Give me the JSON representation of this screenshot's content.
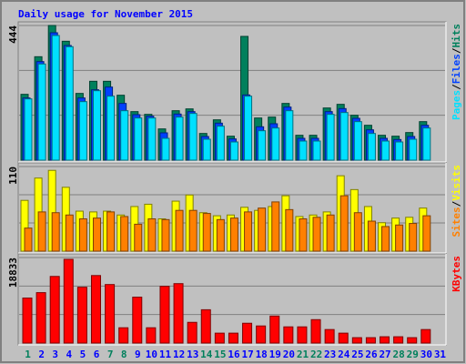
{
  "chart_data": {
    "type": "bar",
    "title": "Daily usage for November 2015",
    "title_color": "#0000ff",
    "categories": [
      "1",
      "2",
      "3",
      "4",
      "5",
      "6",
      "7",
      "8",
      "9",
      "10",
      "11",
      "12",
      "13",
      "14",
      "15",
      "16",
      "17",
      "18",
      "19",
      "20",
      "21",
      "22",
      "23",
      "24",
      "25",
      "26",
      "27",
      "28",
      "29",
      "30",
      "31"
    ],
    "category_colors": [
      "#00805c",
      "#0000ff",
      "#0000ff",
      "#0000ff",
      "#0000ff",
      "#0000ff",
      "#00805c",
      "#00805c",
      "#0000ff",
      "#0000ff",
      "#0000ff",
      "#0000ff",
      "#0000ff",
      "#00805c",
      "#00805c",
      "#0000ff",
      "#0000ff",
      "#0000ff",
      "#0000ff",
      "#0000ff",
      "#00805c",
      "#00805c",
      "#0000ff",
      "#0000ff",
      "#0000ff",
      "#0000ff",
      "#0000ff",
      "#00805c",
      "#00805c",
      "#0000ff",
      "#0000ff"
    ],
    "legend_separator": "/",
    "panels": [
      {
        "ylim": [
          0,
          444
        ],
        "yticks": [
          444
        ],
        "series": [
          {
            "name": "Hits",
            "color": "#00805c",
            "values": [
              217,
              341,
              444,
              392,
              220,
              260,
              260,
              214,
              160,
              151,
              103,
              163,
              169,
              88,
              133,
              79,
              408,
              139,
              142,
              187,
              82,
              82,
              172,
              184,
              148,
              115,
              82,
              79,
              91,
              127,
              0
            ]
          },
          {
            "name": "Files",
            "color": "#0040ff",
            "values": [
              205,
              325,
              420,
              378,
              205,
              232,
              241,
              187,
              150,
              145,
              90,
              152,
              160,
              78,
              122,
              70,
              215,
              110,
              120,
              175,
              72,
              72,
              160,
              170,
              138,
              100,
              72,
              68,
              78,
              115,
              0
            ]
          },
          {
            "name": "Pages",
            "color": "#00e0ff",
            "values": [
              202,
              317,
              411,
              374,
              193,
              229,
              211,
              163,
              139,
              139,
              72,
              142,
              154,
              69,
              112,
              60,
              211,
              97,
              106,
              163,
              63,
              63,
              151,
              157,
              127,
              88,
              63,
              60,
              69,
              106,
              0
            ]
          }
        ]
      },
      {
        "ylim": [
          0,
          110
        ],
        "yticks": [
          110
        ],
        "series": [
          {
            "name": "Visits",
            "color": "#ffff00",
            "values": [
              66,
              95,
              105,
              83,
              52,
              51,
              52,
              47,
              58,
              61,
              42,
              65,
              73,
              50,
              46,
              47,
              57,
              53,
              58,
              72,
              45,
              47,
              51,
              98,
              80,
              58,
              37,
              43,
              44,
              56,
              0
            ]
          },
          {
            "name": "Sites",
            "color": "#ff8000",
            "values": [
              30,
              51,
              50,
              47,
              42,
              43,
              51,
              45,
              35,
              42,
              41,
              53,
              53,
              49,
              41,
              43,
              51,
              56,
              64,
              54,
              42,
              44,
              47,
              72,
              50,
              39,
              32,
              34,
              36,
              46,
              0
            ]
          }
        ]
      },
      {
        "ylim": [
          0,
          18833
        ],
        "yticks": [
          18833
        ],
        "series": [
          {
            "name": "KBytes",
            "color": "#ff0000",
            "values": [
              9912,
              11102,
              14670,
              18435,
              12291,
              14868,
              12886,
              3370,
              10110,
              3370,
              12489,
              13084,
              4560,
              7335,
              2181,
              2181,
              4361,
              3767,
              5947,
              3568,
              3568,
              5154,
              2974,
              2181,
              1189,
              1189,
              1388,
              1388,
              1189,
              2974,
              0
            ]
          }
        ]
      }
    ]
  }
}
